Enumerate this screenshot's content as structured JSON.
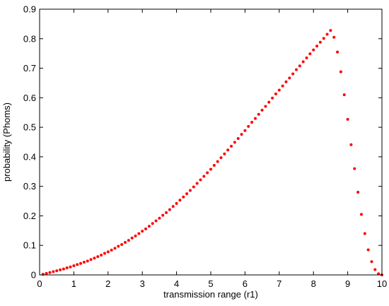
{
  "chart_data": {
    "type": "scatter",
    "title": "",
    "xlabel": "transmission range (r1)",
    "ylabel": "probability (Phoms)",
    "xlim": [
      0,
      10
    ],
    "ylim": [
      0,
      0.9
    ],
    "xticks": [
      0,
      1,
      2,
      3,
      4,
      5,
      6,
      7,
      8,
      9,
      10
    ],
    "yticks": [
      0,
      0.1,
      0.2,
      0.3,
      0.4,
      0.5,
      0.6,
      0.7,
      0.8,
      0.9
    ],
    "xtick_labels": [
      "0",
      "1",
      "2",
      "3",
      "4",
      "5",
      "6",
      "7",
      "8",
      "9",
      "10"
    ],
    "ytick_labels": [
      "0",
      "0.1",
      "0.2",
      "0.3",
      "0.4",
      "0.5",
      "0.6",
      "0.7",
      "0.8",
      "0.9"
    ],
    "grid": false,
    "box": true,
    "series": [
      {
        "color": "#ff0000",
        "marker": "dot",
        "points": [
          [
            0.1,
            0.002
          ],
          [
            0.2,
            0.005
          ],
          [
            0.3,
            0.008
          ],
          [
            0.4,
            0.011
          ],
          [
            0.5,
            0.014
          ],
          [
            0.6,
            0.017
          ],
          [
            0.7,
            0.02
          ],
          [
            0.8,
            0.024
          ],
          [
            0.9,
            0.027
          ],
          [
            1.0,
            0.031
          ],
          [
            1.1,
            0.035
          ],
          [
            1.2,
            0.039
          ],
          [
            1.3,
            0.043
          ],
          [
            1.4,
            0.047
          ],
          [
            1.5,
            0.052
          ],
          [
            1.6,
            0.057
          ],
          [
            1.7,
            0.062
          ],
          [
            1.8,
            0.067
          ],
          [
            1.9,
            0.073
          ],
          [
            2.0,
            0.078
          ],
          [
            2.1,
            0.084
          ],
          [
            2.2,
            0.09
          ],
          [
            2.3,
            0.097
          ],
          [
            2.4,
            0.103
          ],
          [
            2.5,
            0.11
          ],
          [
            2.6,
            0.117
          ],
          [
            2.7,
            0.125
          ],
          [
            2.8,
            0.132
          ],
          [
            2.9,
            0.14
          ],
          [
            3.0,
            0.148
          ],
          [
            3.1,
            0.156
          ],
          [
            3.2,
            0.165
          ],
          [
            3.3,
            0.174
          ],
          [
            3.4,
            0.183
          ],
          [
            3.5,
            0.192
          ],
          [
            3.6,
            0.202
          ],
          [
            3.7,
            0.211
          ],
          [
            3.8,
            0.221
          ],
          [
            3.9,
            0.232
          ],
          [
            4.0,
            0.242
          ],
          [
            4.1,
            0.253
          ],
          [
            4.2,
            0.264
          ],
          [
            4.3,
            0.275
          ],
          [
            4.4,
            0.286
          ],
          [
            4.5,
            0.298
          ],
          [
            4.6,
            0.31
          ],
          [
            4.7,
            0.322
          ],
          [
            4.8,
            0.334
          ],
          [
            4.9,
            0.346
          ],
          [
            5.0,
            0.358
          ],
          [
            5.1,
            0.371
          ],
          [
            5.2,
            0.384
          ],
          [
            5.3,
            0.397
          ],
          [
            5.4,
            0.41
          ],
          [
            5.5,
            0.423
          ],
          [
            5.6,
            0.436
          ],
          [
            5.7,
            0.449
          ],
          [
            5.8,
            0.462
          ],
          [
            5.9,
            0.476
          ],
          [
            6.0,
            0.489
          ],
          [
            6.1,
            0.503
          ],
          [
            6.2,
            0.517
          ],
          [
            6.3,
            0.53
          ],
          [
            6.4,
            0.544
          ],
          [
            6.5,
            0.558
          ],
          [
            6.6,
            0.571
          ],
          [
            6.7,
            0.585
          ],
          [
            6.8,
            0.599
          ],
          [
            6.9,
            0.613
          ],
          [
            7.0,
            0.626
          ],
          [
            7.1,
            0.64
          ],
          [
            7.2,
            0.654
          ],
          [
            7.3,
            0.667
          ],
          [
            7.4,
            0.681
          ],
          [
            7.5,
            0.695
          ],
          [
            7.6,
            0.708
          ],
          [
            7.7,
            0.722
          ],
          [
            7.8,
            0.735
          ],
          [
            7.9,
            0.749
          ],
          [
            8.0,
            0.762
          ],
          [
            8.1,
            0.775
          ],
          [
            8.2,
            0.788
          ],
          [
            8.3,
            0.801
          ],
          [
            8.4,
            0.815
          ],
          [
            8.5,
            0.828
          ],
          [
            8.6,
            0.805
          ],
          [
            8.7,
            0.755
          ],
          [
            8.8,
            0.688
          ],
          [
            8.9,
            0.61
          ],
          [
            9.0,
            0.527
          ],
          [
            9.1,
            0.441
          ],
          [
            9.2,
            0.36
          ],
          [
            9.3,
            0.28
          ],
          [
            9.4,
            0.205
          ],
          [
            9.5,
            0.14
          ],
          [
            9.6,
            0.085
          ],
          [
            9.7,
            0.045
          ],
          [
            9.8,
            0.018
          ],
          [
            9.9,
            0.004
          ],
          [
            10.0,
            0.0
          ]
        ]
      }
    ]
  }
}
